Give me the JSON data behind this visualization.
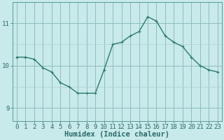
{
  "x": [
    0,
    1,
    2,
    3,
    4,
    5,
    6,
    7,
    8,
    9,
    10,
    11,
    12,
    13,
    14,
    15,
    16,
    17,
    18,
    19,
    20,
    21,
    22,
    23
  ],
  "y": [
    10.2,
    10.2,
    10.15,
    9.95,
    9.85,
    9.6,
    9.5,
    9.35,
    9.35,
    9.35,
    9.9,
    10.5,
    10.55,
    10.7,
    10.8,
    11.15,
    11.05,
    10.7,
    10.55,
    10.45,
    10.2,
    10.0,
    9.9,
    9.85
  ],
  "line_color": "#2a7a6a",
  "marker": "+",
  "marker_size": 3,
  "bg_color": "#c8eaea",
  "grid_minor_color": "#b0d0d0",
  "grid_major_color": "#90bcbc",
  "xlabel": "Humidex (Indice chaleur)",
  "xlabel_fontsize": 7.5,
  "ytick_labels": [
    "9",
    "10",
    "11"
  ],
  "yticks": [
    9,
    10,
    11
  ],
  "xticks": [
    0,
    1,
    2,
    3,
    4,
    5,
    6,
    7,
    8,
    9,
    10,
    11,
    12,
    13,
    14,
    15,
    16,
    17,
    18,
    19,
    20,
    21,
    22,
    23
  ],
  "ylim": [
    8.7,
    11.5
  ],
  "xlim": [
    -0.5,
    23.5
  ],
  "tick_fontsize": 6.5,
  "line_width": 1.0,
  "tick_color": "#2a6a6a",
  "spine_color": "#5a9a9a"
}
